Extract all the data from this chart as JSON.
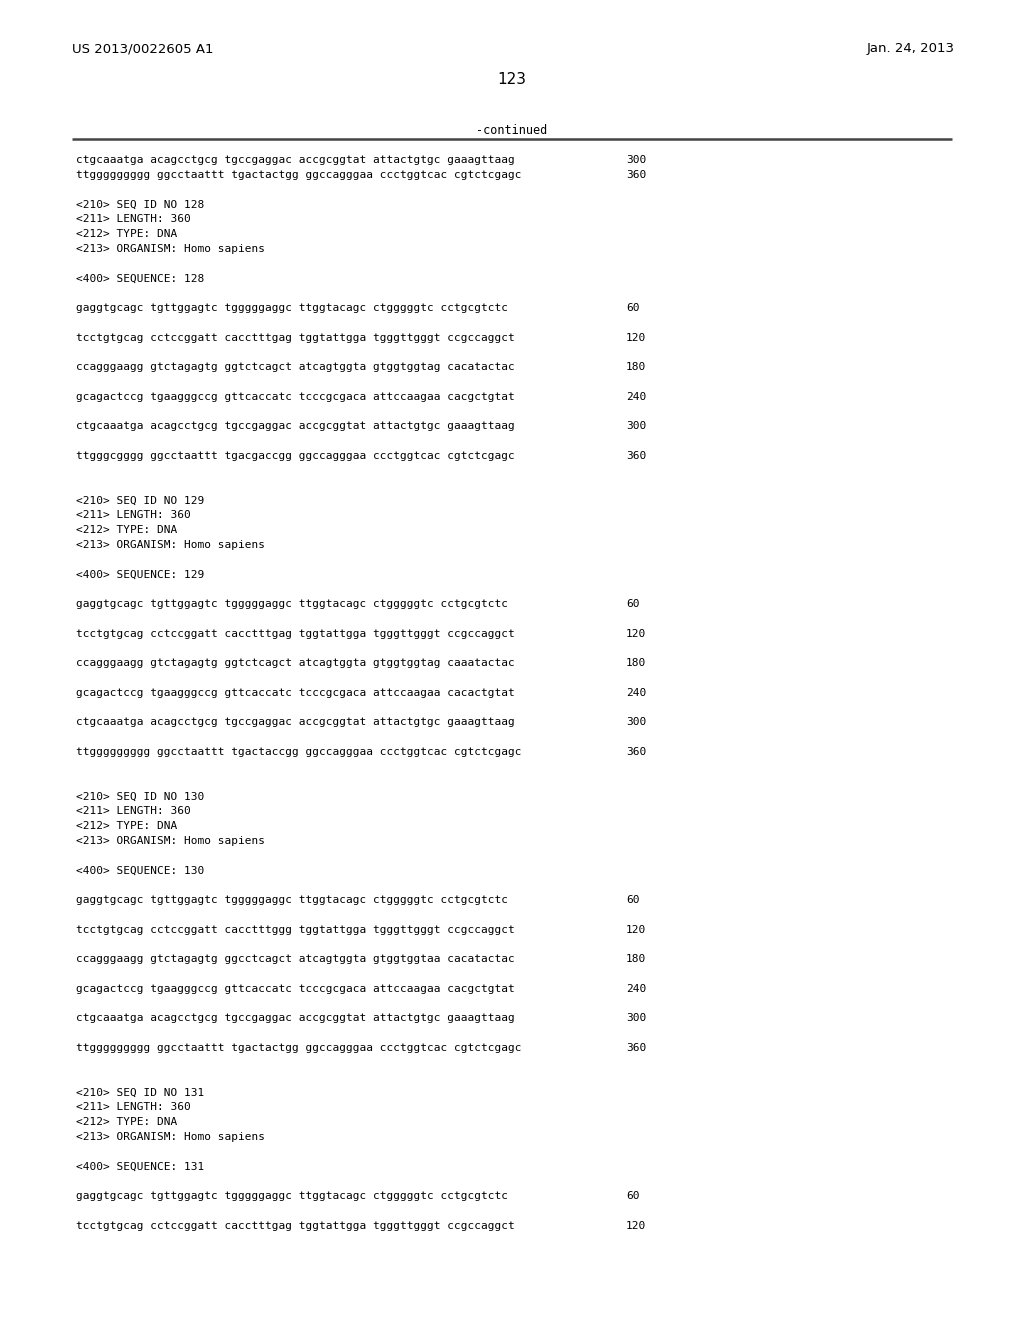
{
  "patent_number": "US 2013/0022605 A1",
  "date": "Jan. 24, 2013",
  "page_number": "123",
  "continued_label": "-continued",
  "background_color": "#ffffff",
  "text_color": "#000000",
  "font_size_header": 9.5,
  "font_size_page_num": 11,
  "font_size_body": 8.0,
  "lines": [
    {
      "text": "ctgcaaatga acagcctgcg tgccgaggac accgcggtat attactgtgc gaaagttaag",
      "num": "300"
    },
    {
      "text": "ttggggggggg ggcctaattt tgactactgg ggccagggaa ccctggtcac cgtctcgagc",
      "num": "360"
    },
    {
      "text": "",
      "num": ""
    },
    {
      "text": "<210> SEQ ID NO 128",
      "num": ""
    },
    {
      "text": "<211> LENGTH: 360",
      "num": ""
    },
    {
      "text": "<212> TYPE: DNA",
      "num": ""
    },
    {
      "text": "<213> ORGANISM: Homo sapiens",
      "num": ""
    },
    {
      "text": "",
      "num": ""
    },
    {
      "text": "<400> SEQUENCE: 128",
      "num": ""
    },
    {
      "text": "",
      "num": ""
    },
    {
      "text": "gaggtgcagc tgttggagtc tgggggaggc ttggtacagc ctgggggtc cctgcgtctc",
      "num": "60"
    },
    {
      "text": "",
      "num": ""
    },
    {
      "text": "tcctgtgcag cctccggatt cacctttgag tggtattgga tgggttgggt ccgccaggct",
      "num": "120"
    },
    {
      "text": "",
      "num": ""
    },
    {
      "text": "ccagggaagg gtctagagtg ggtctcagct atcagtggta gtggtggtag cacatactac",
      "num": "180"
    },
    {
      "text": "",
      "num": ""
    },
    {
      "text": "gcagactccg tgaagggccg gttcaccatc tcccgcgaca attccaagaa cacgctgtat",
      "num": "240"
    },
    {
      "text": "",
      "num": ""
    },
    {
      "text": "ctgcaaatga acagcctgcg tgccgaggac accgcggtat attactgtgc gaaagttaag",
      "num": "300"
    },
    {
      "text": "",
      "num": ""
    },
    {
      "text": "ttgggcgggg ggcctaattt tgacgaccgg ggccagggaa ccctggtcac cgtctcgagc",
      "num": "360"
    },
    {
      "text": "",
      "num": ""
    },
    {
      "text": "",
      "num": ""
    },
    {
      "text": "<210> SEQ ID NO 129",
      "num": ""
    },
    {
      "text": "<211> LENGTH: 360",
      "num": ""
    },
    {
      "text": "<212> TYPE: DNA",
      "num": ""
    },
    {
      "text": "<213> ORGANISM: Homo sapiens",
      "num": ""
    },
    {
      "text": "",
      "num": ""
    },
    {
      "text": "<400> SEQUENCE: 129",
      "num": ""
    },
    {
      "text": "",
      "num": ""
    },
    {
      "text": "gaggtgcagc tgttggagtc tgggggaggc ttggtacagc ctgggggtc cctgcgtctc",
      "num": "60"
    },
    {
      "text": "",
      "num": ""
    },
    {
      "text": "tcctgtgcag cctccggatt cacctttgag tggtattgga tgggttgggt ccgccaggct",
      "num": "120"
    },
    {
      "text": "",
      "num": ""
    },
    {
      "text": "ccagggaagg gtctagagtg ggtctcagct atcagtggta gtggtggtag caaatactac",
      "num": "180"
    },
    {
      "text": "",
      "num": ""
    },
    {
      "text": "gcagactccg tgaagggccg gttcaccatc tcccgcgaca attccaagaa cacactgtat",
      "num": "240"
    },
    {
      "text": "",
      "num": ""
    },
    {
      "text": "ctgcaaatga acagcctgcg tgccgaggac accgcggtat attactgtgc gaaagttaag",
      "num": "300"
    },
    {
      "text": "",
      "num": ""
    },
    {
      "text": "ttggggggggg ggcctaattt tgactaccgg ggccagggaa ccctggtcac cgtctcgagc",
      "num": "360"
    },
    {
      "text": "",
      "num": ""
    },
    {
      "text": "",
      "num": ""
    },
    {
      "text": "<210> SEQ ID NO 130",
      "num": ""
    },
    {
      "text": "<211> LENGTH: 360",
      "num": ""
    },
    {
      "text": "<212> TYPE: DNA",
      "num": ""
    },
    {
      "text": "<213> ORGANISM: Homo sapiens",
      "num": ""
    },
    {
      "text": "",
      "num": ""
    },
    {
      "text": "<400> SEQUENCE: 130",
      "num": ""
    },
    {
      "text": "",
      "num": ""
    },
    {
      "text": "gaggtgcagc tgttggagtc tgggggaggc ttggtacagc ctgggggtc cctgcgtctc",
      "num": "60"
    },
    {
      "text": "",
      "num": ""
    },
    {
      "text": "tcctgtgcag cctccggatt cacctttggg tggtattgga tgggttgggt ccgccaggct",
      "num": "120"
    },
    {
      "text": "",
      "num": ""
    },
    {
      "text": "ccagggaagg gtctagagtg ggcctcagct atcagtggta gtggtggtaa cacatactac",
      "num": "180"
    },
    {
      "text": "",
      "num": ""
    },
    {
      "text": "gcagactccg tgaagggccg gttcaccatc tcccgcgaca attccaagaa cacgctgtat",
      "num": "240"
    },
    {
      "text": "",
      "num": ""
    },
    {
      "text": "ctgcaaatga acagcctgcg tgccgaggac accgcggtat attactgtgc gaaagttaag",
      "num": "300"
    },
    {
      "text": "",
      "num": ""
    },
    {
      "text": "ttggggggggg ggcctaattt tgactactgg ggccagggaa ccctggtcac cgtctcgagc",
      "num": "360"
    },
    {
      "text": "",
      "num": ""
    },
    {
      "text": "",
      "num": ""
    },
    {
      "text": "<210> SEQ ID NO 131",
      "num": ""
    },
    {
      "text": "<211> LENGTH: 360",
      "num": ""
    },
    {
      "text": "<212> TYPE: DNA",
      "num": ""
    },
    {
      "text": "<213> ORGANISM: Homo sapiens",
      "num": ""
    },
    {
      "text": "",
      "num": ""
    },
    {
      "text": "<400> SEQUENCE: 131",
      "num": ""
    },
    {
      "text": "",
      "num": ""
    },
    {
      "text": "gaggtgcagc tgttggagtc tgggggaggc ttggtacagc ctgggggtc cctgcgtctc",
      "num": "60"
    },
    {
      "text": "",
      "num": ""
    },
    {
      "text": "tcctgtgcag cctccggatt cacctttgag tggtattgga tgggttgggt ccgccaggct",
      "num": "120"
    }
  ]
}
